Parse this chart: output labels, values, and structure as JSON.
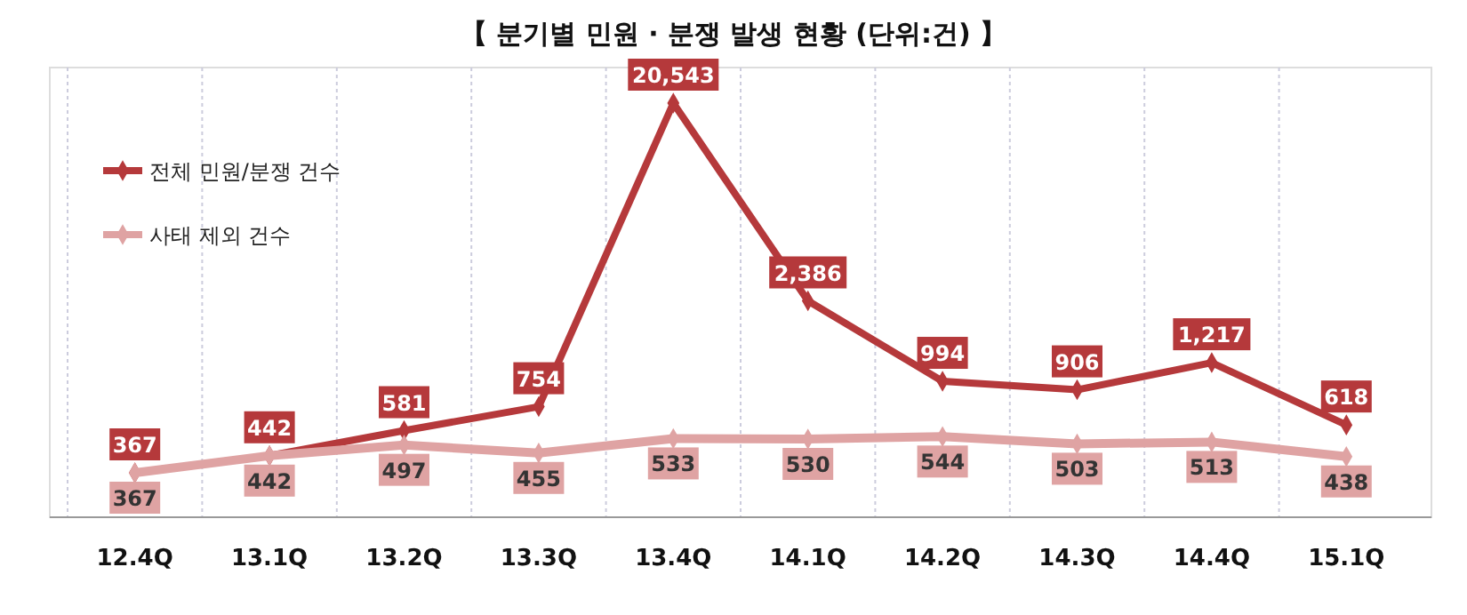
{
  "chart_data": {
    "type": "line",
    "title": "【 분기별 민원 · 분쟁 발생 현황 (단위:건) 】",
    "categories": [
      "12.4Q",
      "13.1Q",
      "13.2Q",
      "13.3Q",
      "13.4Q",
      "14.1Q",
      "14.2Q",
      "14.3Q",
      "14.4Q",
      "15.1Q"
    ],
    "series": [
      {
        "name": "전체 민원/분쟁 건수",
        "color": "#b5393b",
        "values": [
          367,
          442,
          581,
          754,
          20543,
          2386,
          994,
          906,
          1217,
          618
        ],
        "value_labels": [
          "367",
          "442",
          "581",
          "754",
          "20,543",
          "2,386",
          "994",
          "906",
          "1,217",
          "618"
        ]
      },
      {
        "name": "사태 제외 건수",
        "color": "#dfa3a3",
        "values": [
          367,
          442,
          497,
          455,
          533,
          530,
          544,
          503,
          513,
          438
        ],
        "value_labels": [
          "367",
          "442",
          "497",
          "455",
          "533",
          "530",
          "544",
          "503",
          "513",
          "438"
        ]
      }
    ],
    "log": true,
    "grid": "x",
    "legend": "top left",
    "marker": "diamond"
  }
}
